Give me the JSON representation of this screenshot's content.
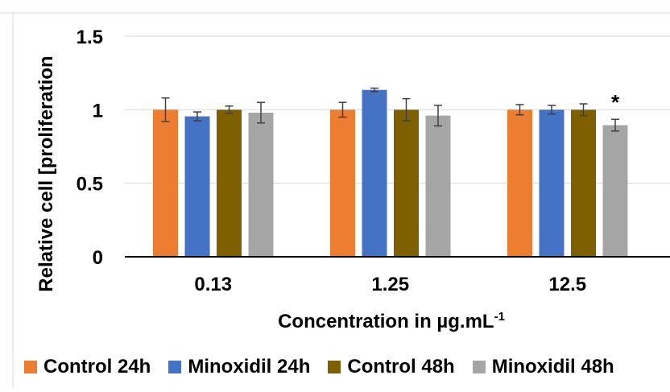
{
  "chart_data": {
    "type": "bar",
    "ylabel": "Relative cell [proliferation",
    "xlabel_main": "Concentration in µg.mL",
    "xlabel_sup": "-1",
    "ylim": [
      0,
      1.5
    ],
    "yticks": [
      "0",
      "0.5",
      "1",
      "1.5"
    ],
    "grid": true,
    "legend_position": "bottom",
    "categories": [
      "0.13",
      "1.25",
      "12.5"
    ],
    "series": [
      {
        "name": "Control 24h",
        "color": "#ED7D31",
        "values": [
          1.0,
          1.0,
          1.0
        ],
        "errors": [
          0.08,
          0.05,
          0.035
        ]
      },
      {
        "name": "Minoxidil 24h",
        "color": "#4472C4",
        "values": [
          0.955,
          1.135,
          1.0
        ],
        "errors": [
          0.03,
          0.012,
          0.03
        ]
      },
      {
        "name": "Control 48h",
        "color": "#7F6000",
        "values": [
          1.0,
          1.0,
          1.0
        ],
        "errors": [
          0.025,
          0.075,
          0.04
        ]
      },
      {
        "name": "Minoxidil 48h",
        "color": "#A5A5A5",
        "values": [
          0.98,
          0.96,
          0.895
        ],
        "errors": [
          0.07,
          0.07,
          0.04
        ]
      }
    ],
    "annotations": [
      {
        "text": "*",
        "category": "12.5",
        "series": "Minoxidil 48h"
      }
    ]
  }
}
